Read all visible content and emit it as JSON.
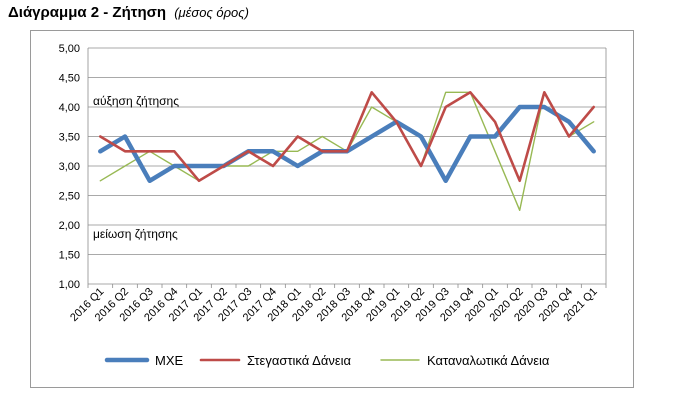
{
  "header": {
    "title": "Διάγραμμα 2 - Ζήτηση",
    "subtitle": "(μέσος όρος)"
  },
  "chart_data": {
    "type": "line",
    "categories": [
      "2016 Q1",
      "2016 Q2",
      "2016 Q3",
      "2016 Q4",
      "2017 Q1",
      "2017 Q2",
      "2017 Q3",
      "2017 Q4",
      "2018 Q1",
      "2018 Q2",
      "2018 Q3",
      "2018 Q4",
      "2019 Q1",
      "2019 Q2",
      "2019 Q3",
      "2019 Q4",
      "2020 Q1",
      "2020 Q2",
      "2020 Q3",
      "2020 Q4",
      "2021 Q1"
    ],
    "y_ticks": [
      "5,00",
      "4,50",
      "4,00",
      "3,50",
      "3,00",
      "2,50",
      "2,00",
      "1,50",
      "1,00"
    ],
    "ylim": [
      1,
      5
    ],
    "grid": true,
    "legend_position": "bottom",
    "annotations": [
      {
        "text": "αύξηση ζήτησης",
        "y": 4.1
      },
      {
        "text": "μείωση ζήτησης",
        "y": 1.85
      }
    ],
    "series": [
      {
        "name": "ΜΧΕ",
        "color": "#4a7ebb",
        "values": [
          3.25,
          3.5,
          2.75,
          3.0,
          3.0,
          3.0,
          3.25,
          3.25,
          3.0,
          3.25,
          3.25,
          3.5,
          3.75,
          3.5,
          2.75,
          3.5,
          3.5,
          4.0,
          4.0,
          3.75,
          3.25
        ]
      },
      {
        "name": "Στεγαστικά Δάνεια",
        "color": "#be4b48",
        "values": [
          3.5,
          3.25,
          3.25,
          3.25,
          2.75,
          3.0,
          3.25,
          3.0,
          3.5,
          3.25,
          3.25,
          4.25,
          3.75,
          3.0,
          4.0,
          4.25,
          3.75,
          2.75,
          4.25,
          3.5,
          4.0
        ]
      },
      {
        "name": "Καταναλωτικά Δάνεια",
        "color": "#98b954",
        "values": [
          2.75,
          3.0,
          3.25,
          3.0,
          2.75,
          3.0,
          3.0,
          3.25,
          3.25,
          3.5,
          3.25,
          4.0,
          3.75,
          3.0,
          4.25,
          4.25,
          3.25,
          2.25,
          4.25,
          3.5,
          3.75
        ]
      }
    ]
  }
}
